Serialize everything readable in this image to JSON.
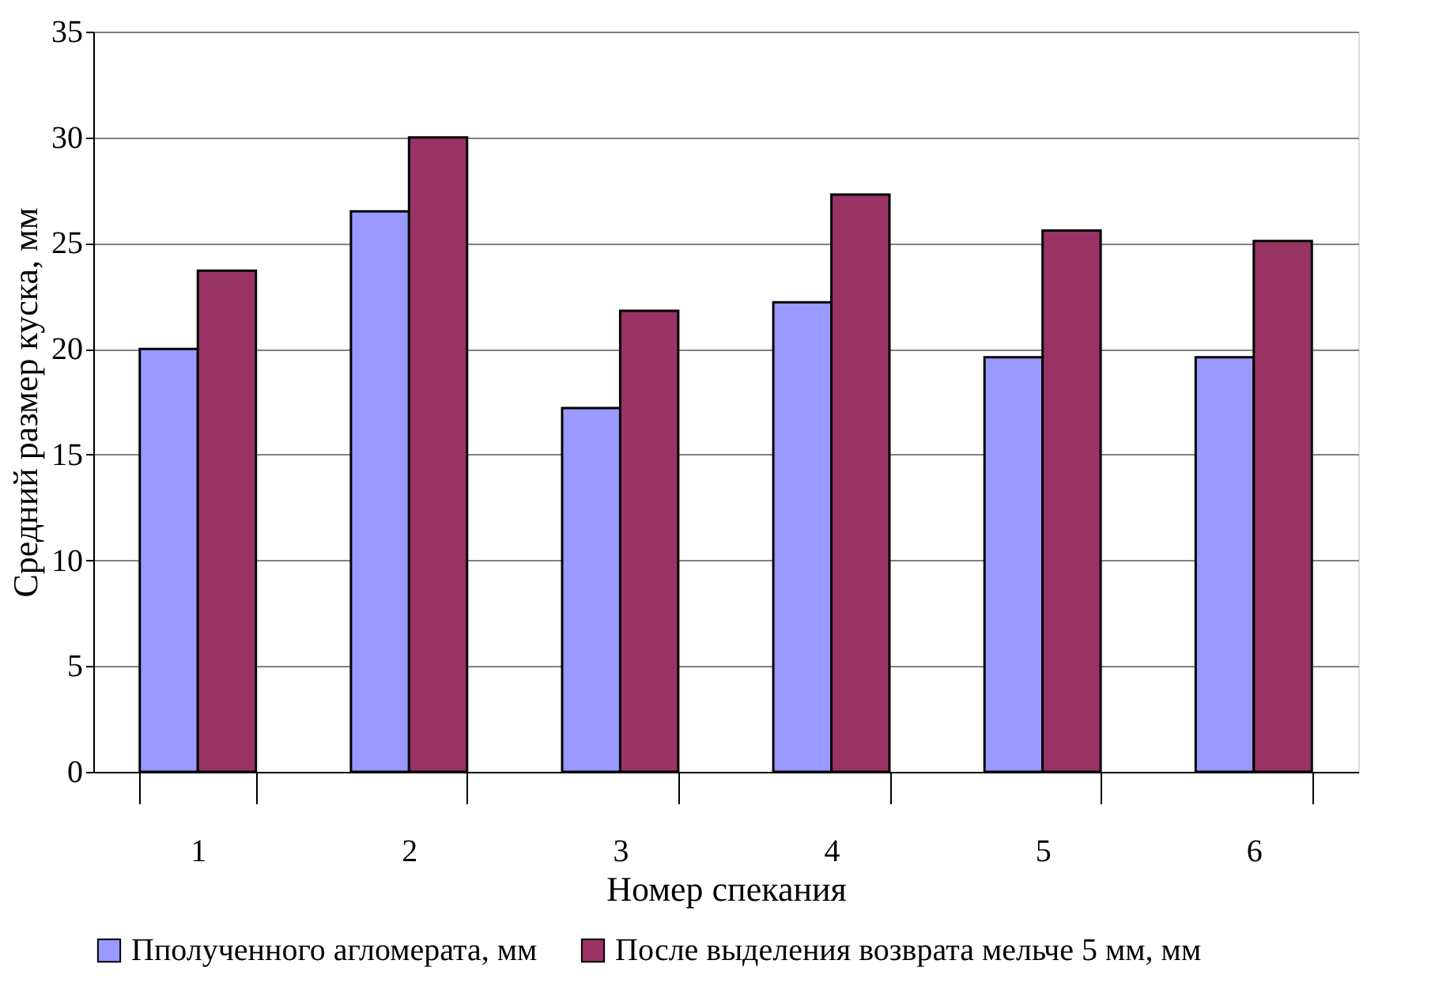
{
  "chart_data": {
    "type": "bar",
    "xlabel": "Номер спекания",
    "ylabel": "Средний размер куска, мм",
    "categories": [
      "1",
      "2",
      "3",
      "4",
      "5",
      "6"
    ],
    "series": [
      {
        "name": "Пполученного агломерата, мм",
        "color": "#9999ff",
        "values": [
          20,
          26.5,
          17.2,
          22.2,
          19.6,
          19.6
        ]
      },
      {
        "name": "После выделения возврата мельче 5 мм, мм",
        "color": "#993366",
        "values": [
          23.7,
          30,
          21.8,
          27.3,
          25.6,
          25.1
        ]
      }
    ],
    "ylim": [
      0,
      35
    ],
    "yticks": [
      0,
      5,
      10,
      15,
      20,
      25,
      30,
      35
    ],
    "grid": "y",
    "legend": "bottom"
  }
}
